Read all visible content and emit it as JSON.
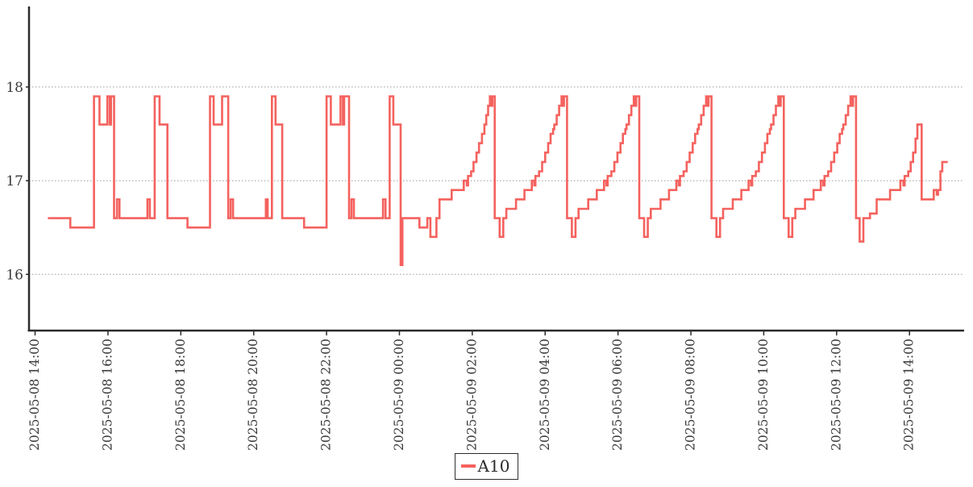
{
  "colors": {
    "series": "#f4625e",
    "axis": "#2b2b2b",
    "gridline": "#999999",
    "tick_text": "#3a3a3a",
    "background": "#ffffff",
    "legend_border": "#2b2b2b"
  },
  "legend": {
    "position": "bottom-center"
  },
  "chart_data": {
    "type": "line",
    "title": "",
    "xlabel": "",
    "ylabel": "",
    "grid": "horizontal-dashed",
    "legend_position": "bottom-center",
    "x_unit": "minutes after 2025-05-08 14:00",
    "xlim_minutes": [
      -10,
      1530
    ],
    "ylim": [
      15.4,
      18.86
    ],
    "y_ticks": [
      {
        "value": 16,
        "label": "16"
      },
      {
        "value": 17,
        "label": "17"
      },
      {
        "value": 18,
        "label": "18"
      }
    ],
    "x_ticks": [
      {
        "minutes": 0,
        "label": "2025-05-08 14:00"
      },
      {
        "minutes": 120,
        "label": "2025-05-08 16:00"
      },
      {
        "minutes": 240,
        "label": "2025-05-08 18:00"
      },
      {
        "minutes": 360,
        "label": "2025-05-08 20:00"
      },
      {
        "minutes": 480,
        "label": "2025-05-08 22:00"
      },
      {
        "minutes": 600,
        "label": "2025-05-09 00:00"
      },
      {
        "minutes": 720,
        "label": "2025-05-09 02:00"
      },
      {
        "minutes": 840,
        "label": "2025-05-09 04:00"
      },
      {
        "minutes": 960,
        "label": "2025-05-09 06:00"
      },
      {
        "minutes": 1080,
        "label": "2025-05-09 08:00"
      },
      {
        "minutes": 1200,
        "label": "2025-05-09 10:00"
      },
      {
        "minutes": 1320,
        "label": "2025-05-09 12:00"
      },
      {
        "minutes": 1440,
        "label": "2025-05-09 14:00"
      }
    ],
    "series": [
      {
        "name": "A10",
        "color": "#f4625e",
        "interpolation": "step-after",
        "points": [
          [
            21,
            16.6
          ],
          [
            58,
            16.5
          ],
          [
            97,
            17.9
          ],
          [
            106,
            17.6
          ],
          [
            119,
            17.9
          ],
          [
            123,
            17.6
          ],
          [
            125,
            17.9
          ],
          [
            130,
            16.6
          ],
          [
            135,
            16.8
          ],
          [
            139,
            16.6
          ],
          [
            185,
            16.8
          ],
          [
            189,
            16.6
          ],
          [
            197,
            17.9
          ],
          [
            205,
            17.6
          ],
          [
            218,
            16.6
          ],
          [
            251,
            16.5
          ],
          [
            288,
            17.9
          ],
          [
            294,
            17.6
          ],
          [
            308,
            17.9
          ],
          [
            318,
            16.6
          ],
          [
            322,
            16.8
          ],
          [
            326,
            16.6
          ],
          [
            380,
            16.8
          ],
          [
            383,
            16.6
          ],
          [
            390,
            17.9
          ],
          [
            396,
            17.6
          ],
          [
            407,
            16.6
          ],
          [
            443,
            16.5
          ],
          [
            480,
            17.9
          ],
          [
            487,
            17.6
          ],
          [
            503,
            17.9
          ],
          [
            507,
            17.6
          ],
          [
            509,
            17.9
          ],
          [
            517,
            16.6
          ],
          [
            521,
            16.8
          ],
          [
            525,
            16.6
          ],
          [
            573,
            16.8
          ],
          [
            577,
            16.6
          ],
          [
            584,
            17.9
          ],
          [
            590,
            17.6
          ],
          [
            602,
            16.1
          ],
          [
            605,
            16.6
          ],
          [
            633,
            16.5
          ],
          [
            646,
            16.6
          ],
          [
            651,
            16.4
          ],
          [
            661,
            16.6
          ],
          [
            666,
            16.8
          ],
          [
            686,
            16.9
          ],
          [
            706,
            17.0
          ],
          [
            711,
            16.95
          ],
          [
            713,
            17.05
          ],
          [
            718,
            17.1
          ],
          [
            722,
            17.2
          ],
          [
            727,
            17.3
          ],
          [
            731,
            17.4
          ],
          [
            736,
            17.5
          ],
          [
            740,
            17.6
          ],
          [
            743,
            17.7
          ],
          [
            746,
            17.8
          ],
          [
            749,
            17.9
          ],
          [
            752,
            17.8
          ],
          [
            753,
            17.9
          ],
          [
            757,
            16.6
          ],
          [
            765,
            16.4
          ],
          [
            771,
            16.6
          ],
          [
            776,
            16.7
          ],
          [
            792,
            16.8
          ],
          [
            806,
            16.9
          ],
          [
            818,
            17.0
          ],
          [
            822,
            16.95
          ],
          [
            824,
            17.05
          ],
          [
            830,
            17.1
          ],
          [
            835,
            17.2
          ],
          [
            840,
            17.3
          ],
          [
            845,
            17.4
          ],
          [
            849,
            17.5
          ],
          [
            853,
            17.55
          ],
          [
            855,
            17.6
          ],
          [
            859,
            17.7
          ],
          [
            863,
            17.8
          ],
          [
            867,
            17.9
          ],
          [
            870,
            17.8
          ],
          [
            871,
            17.9
          ],
          [
            876,
            16.6
          ],
          [
            884,
            16.4
          ],
          [
            890,
            16.6
          ],
          [
            895,
            16.7
          ],
          [
            911,
            16.8
          ],
          [
            925,
            16.9
          ],
          [
            937,
            17.0
          ],
          [
            941,
            16.95
          ],
          [
            943,
            17.05
          ],
          [
            949,
            17.1
          ],
          [
            954,
            17.2
          ],
          [
            959,
            17.3
          ],
          [
            964,
            17.4
          ],
          [
            968,
            17.5
          ],
          [
            972,
            17.55
          ],
          [
            974,
            17.6
          ],
          [
            978,
            17.7
          ],
          [
            982,
            17.8
          ],
          [
            986,
            17.9
          ],
          [
            989,
            17.8
          ],
          [
            990,
            17.9
          ],
          [
            995,
            16.6
          ],
          [
            1003,
            16.4
          ],
          [
            1009,
            16.6
          ],
          [
            1014,
            16.7
          ],
          [
            1030,
            16.8
          ],
          [
            1044,
            16.9
          ],
          [
            1056,
            17.0
          ],
          [
            1060,
            16.95
          ],
          [
            1062,
            17.05
          ],
          [
            1068,
            17.1
          ],
          [
            1073,
            17.2
          ],
          [
            1078,
            17.3
          ],
          [
            1083,
            17.4
          ],
          [
            1087,
            17.5
          ],
          [
            1091,
            17.55
          ],
          [
            1093,
            17.6
          ],
          [
            1097,
            17.7
          ],
          [
            1101,
            17.8
          ],
          [
            1105,
            17.9
          ],
          [
            1108,
            17.8
          ],
          [
            1109,
            17.9
          ],
          [
            1114,
            16.6
          ],
          [
            1122,
            16.4
          ],
          [
            1128,
            16.6
          ],
          [
            1133,
            16.7
          ],
          [
            1149,
            16.8
          ],
          [
            1163,
            16.9
          ],
          [
            1175,
            17.0
          ],
          [
            1179,
            16.95
          ],
          [
            1181,
            17.05
          ],
          [
            1187,
            17.1
          ],
          [
            1192,
            17.2
          ],
          [
            1197,
            17.3
          ],
          [
            1202,
            17.4
          ],
          [
            1206,
            17.5
          ],
          [
            1210,
            17.55
          ],
          [
            1212,
            17.6
          ],
          [
            1216,
            17.7
          ],
          [
            1220,
            17.8
          ],
          [
            1224,
            17.9
          ],
          [
            1227,
            17.8
          ],
          [
            1228,
            17.9
          ],
          [
            1233,
            16.6
          ],
          [
            1241,
            16.4
          ],
          [
            1247,
            16.6
          ],
          [
            1252,
            16.7
          ],
          [
            1268,
            16.8
          ],
          [
            1282,
            16.9
          ],
          [
            1294,
            17.0
          ],
          [
            1298,
            16.95
          ],
          [
            1300,
            17.05
          ],
          [
            1306,
            17.1
          ],
          [
            1311,
            17.2
          ],
          [
            1316,
            17.3
          ],
          [
            1321,
            17.4
          ],
          [
            1325,
            17.5
          ],
          [
            1329,
            17.55
          ],
          [
            1331,
            17.6
          ],
          [
            1335,
            17.7
          ],
          [
            1339,
            17.8
          ],
          [
            1343,
            17.9
          ],
          [
            1346,
            17.8
          ],
          [
            1347,
            17.9
          ],
          [
            1352,
            16.6
          ],
          [
            1358,
            16.35
          ],
          [
            1364,
            16.6
          ],
          [
            1375,
            16.65
          ],
          [
            1386,
            16.8
          ],
          [
            1408,
            16.9
          ],
          [
            1425,
            17.0
          ],
          [
            1430,
            16.95
          ],
          [
            1432,
            17.05
          ],
          [
            1438,
            17.1
          ],
          [
            1442,
            17.2
          ],
          [
            1446,
            17.3
          ],
          [
            1450,
            17.45
          ],
          [
            1453,
            17.6
          ],
          [
            1460,
            16.8
          ],
          [
            1480,
            16.9
          ],
          [
            1485,
            16.85
          ],
          [
            1487,
            16.9
          ],
          [
            1491,
            17.1
          ],
          [
            1494,
            17.2
          ],
          [
            1503,
            17.2
          ]
        ]
      }
    ]
  }
}
